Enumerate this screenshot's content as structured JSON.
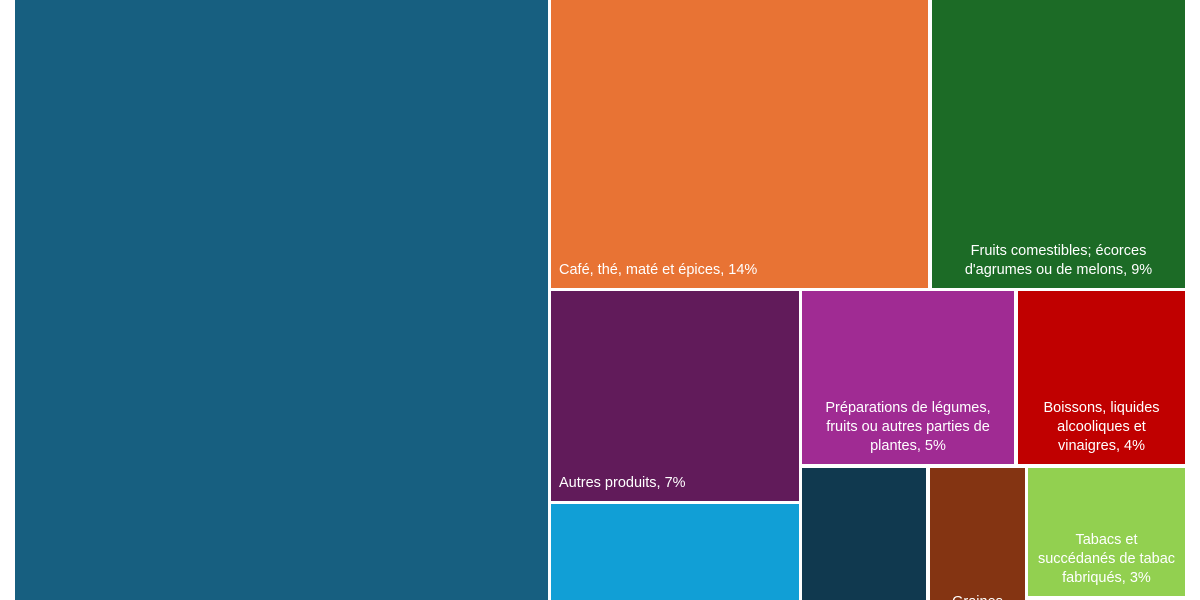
{
  "chart_data": {
    "type": "treemap",
    "labels": [
      null,
      "Café, thé, maté et épices, 14%",
      "Fruits comestibles; écorces d'agrumes ou de melons, 9%",
      "Autres produits, 7%",
      "Préparations de légumes, fruits ou autres parties de plantes, 5%",
      "Boissons, liquides alcooliques et vinaigres, 4%",
      null,
      null,
      "Graines",
      "Tabacs et succédanés de tabac fabriqués, 3%"
    ],
    "values": [
      43,
      14,
      9,
      7,
      5,
      4,
      6,
      3,
      3,
      3
    ],
    "colors": [
      "#175f80",
      "#e87334",
      "#1c6b26",
      "#611b5a",
      "#a02b93",
      "#c00000",
      "#119fd6",
      "#10394f",
      "#843412",
      "#92d050"
    ]
  }
}
